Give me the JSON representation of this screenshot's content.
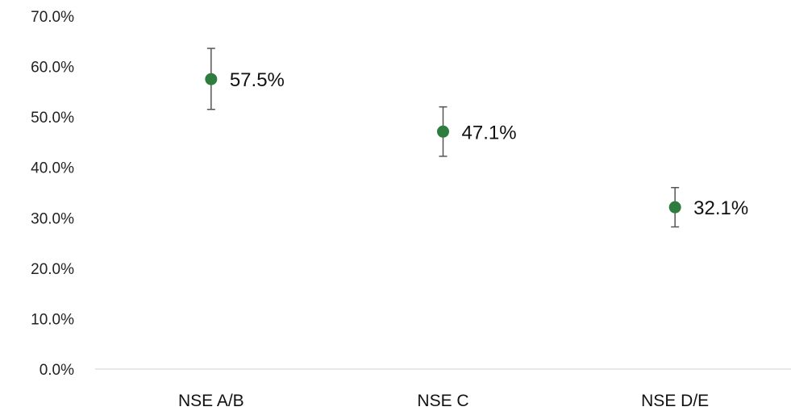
{
  "chart_data": {
    "type": "scatter",
    "title": "",
    "xlabel": "",
    "ylabel": "",
    "categories": [
      "NSE A/B",
      "NSE C",
      "NSE D/E"
    ],
    "values": [
      57.5,
      47.1,
      32.1
    ],
    "error_low": [
      51.5,
      42.2,
      28.2
    ],
    "error_high": [
      63.6,
      52.0,
      36.0
    ],
    "data_labels": [
      "57.5%",
      "47.1%",
      "32.1%"
    ],
    "ylim": [
      0,
      70
    ],
    "yticks": [
      0,
      10,
      20,
      30,
      40,
      50,
      60,
      70
    ],
    "ytick_labels": [
      "0.0%",
      "10.0%",
      "20.0%",
      "30.0%",
      "40.0%",
      "50.0%",
      "60.0%",
      "70.0%"
    ],
    "grid": false,
    "legend": "none",
    "colors": {
      "marker": "#2e7d3e",
      "error_bar": "#555555",
      "axis": "#d0d0d0"
    }
  }
}
